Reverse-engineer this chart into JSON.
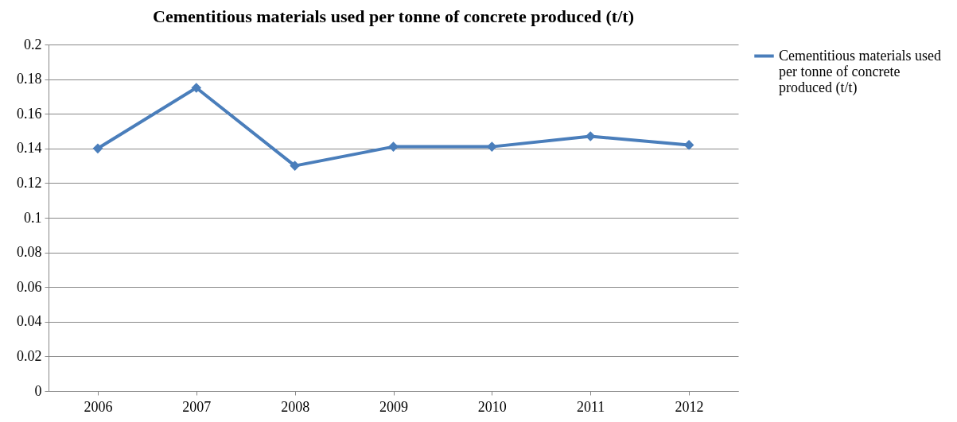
{
  "chart_data": {
    "type": "line",
    "title": "Cementitious materials used per tonne of concrete produced (t/t)",
    "categories": [
      "2006",
      "2007",
      "2008",
      "2009",
      "2010",
      "2011",
      "2012"
    ],
    "series": [
      {
        "name": "Cementitious materials used per tonne of concrete produced (t/t)",
        "color": "#4a7ebb",
        "values": [
          0.14,
          0.175,
          0.13,
          0.141,
          0.141,
          0.147,
          0.142
        ]
      }
    ],
    "ylim": [
      0,
      0.2
    ],
    "yticks": [
      0,
      0.02,
      0.04,
      0.06,
      0.08,
      0.1,
      0.12,
      0.14,
      0.16,
      0.18,
      0.2
    ],
    "grid": "y",
    "legend": "right",
    "marker": "diamond",
    "line_style": "solid"
  }
}
